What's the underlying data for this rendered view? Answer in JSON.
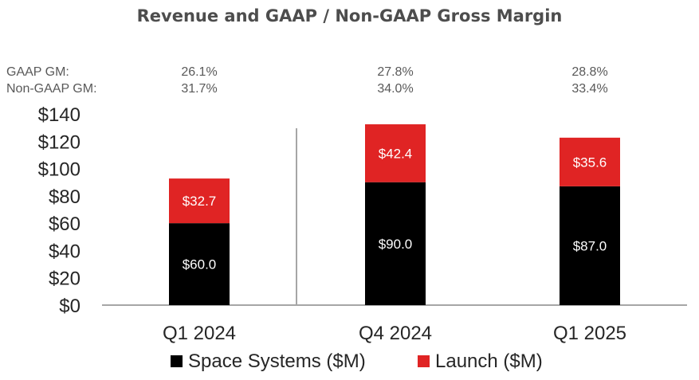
{
  "chart_data": {
    "type": "bar",
    "stacked": true,
    "title": "Revenue and GAAP / Non-GAAP Gross Margin",
    "categories": [
      "Q1 2024",
      "Q4 2024",
      "Q1 2025"
    ],
    "series": [
      {
        "name": "Space Systems ($M)",
        "values": [
          60.0,
          90.0,
          87.0
        ],
        "value_labels": [
          "$60.0",
          "$90.0",
          "$87.0"
        ],
        "color": "#000000"
      },
      {
        "name": "Launch ($M)",
        "values": [
          32.7,
          42.4,
          35.6
        ],
        "value_labels": [
          "$32.7",
          "$42.4",
          "$35.6"
        ],
        "color": "#e02424"
      }
    ],
    "ylim": [
      0,
      140
    ],
    "yticks": [
      0,
      20,
      40,
      60,
      80,
      100,
      120,
      140
    ],
    "ytick_labels": [
      "$0",
      "$20",
      "$40",
      "$60",
      "$80",
      "$100",
      "$120",
      "$140"
    ],
    "margin_rows": [
      {
        "label": "GAAP GM:",
        "values": [
          "26.1%",
          "27.8%",
          "28.8%"
        ]
      },
      {
        "label": "Non-GAAP GM:",
        "values": [
          "31.7%",
          "34.0%",
          "33.4%"
        ]
      }
    ],
    "legend_position": "bottom",
    "grid": false
  },
  "colors": {
    "space_systems": "#000000",
    "launch": "#e02424",
    "axis": "#a6a6a6"
  }
}
